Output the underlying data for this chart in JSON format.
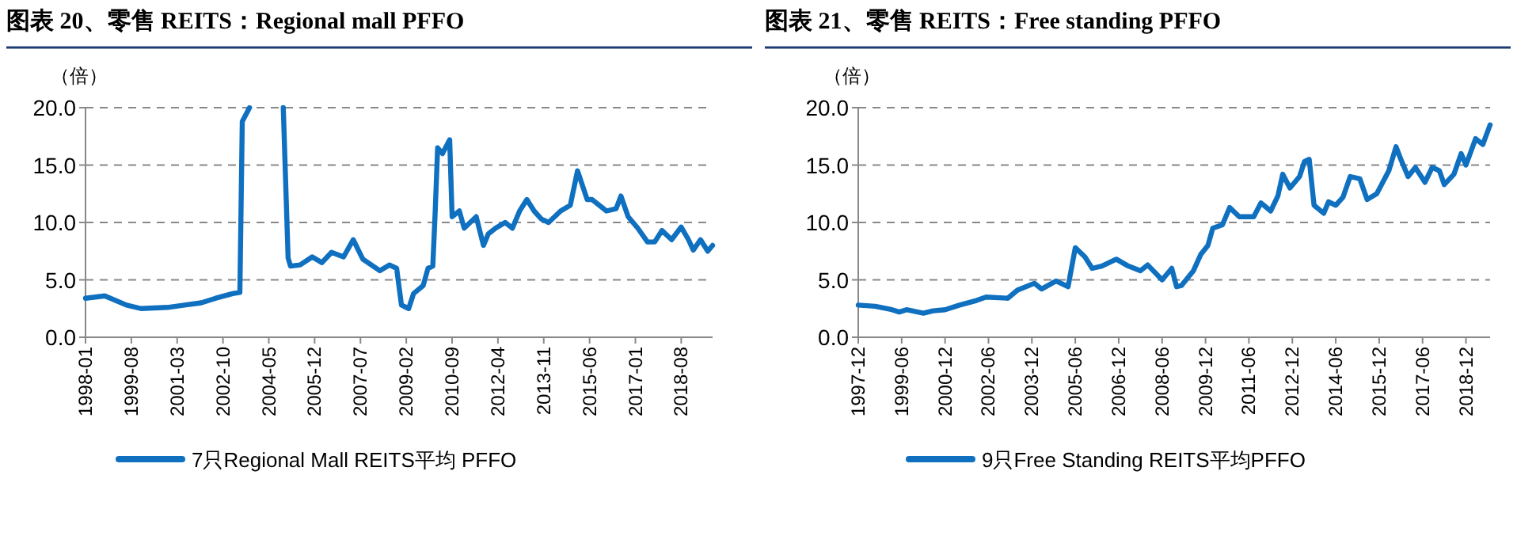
{
  "chart_data": [
    {
      "type": "line",
      "title": "图表 20、零售 REITS：Regional mall PFFO",
      "ylabel": "（倍）",
      "x": [
        "1998-01",
        "1998-09",
        "1999-06",
        "1999-12",
        "2000-11",
        "2001-06",
        "2002-01",
        "2002-07",
        "2003-02",
        "2003-05",
        "2003-06",
        "2003-09",
        "2004-06",
        "2004-11",
        "2005-01",
        "2005-02",
        "2005-06",
        "2005-11",
        "2006-03",
        "2006-07",
        "2006-12",
        "2007-04",
        "2007-08",
        "2008-03",
        "2008-07",
        "2008-10",
        "2008-12",
        "2009-03",
        "2009-05",
        "2009-09",
        "2009-11",
        "2010-01",
        "2010-02",
        "2010-03",
        "2010-05",
        "2010-08",
        "2010-09",
        "2010-12",
        "2011-02",
        "2011-07",
        "2011-10",
        "2011-12",
        "2012-03",
        "2012-07",
        "2012-10",
        "2013-01",
        "2013-04",
        "2013-07",
        "2013-10",
        "2014-01",
        "2014-06",
        "2014-10",
        "2015-01",
        "2015-05",
        "2015-07",
        "2015-10",
        "2016-01",
        "2016-05",
        "2016-07",
        "2016-10",
        "2017-02",
        "2017-06",
        "2017-09",
        "2017-12",
        "2018-04",
        "2018-08",
        "2018-11",
        "2019-01",
        "2019-04",
        "2019-07",
        "2019-09"
      ],
      "series": [
        {
          "name": "7只Regional Mall REITS平均 PFFO",
          "color": "#1070c0",
          "values": [
            3.4,
            3.6,
            2.8,
            2.5,
            2.6,
            2.8,
            3.0,
            3.4,
            3.8,
            3.9,
            18.8,
            20.0,
            null,
            20.0,
            6.9,
            6.2,
            6.3,
            7.0,
            6.5,
            7.4,
            7.0,
            8.5,
            6.8,
            5.8,
            6.3,
            6.0,
            2.8,
            2.5,
            3.8,
            4.5,
            6.0,
            6.2,
            11.0,
            16.5,
            16.0,
            17.2,
            10.5,
            11.0,
            9.5,
            10.5,
            8.0,
            9.0,
            9.5,
            10.0,
            9.5,
            11.0,
            12.0,
            11.0,
            10.3,
            10.0,
            11.0,
            11.5,
            14.5,
            12.0,
            12.0,
            11.5,
            11.0,
            11.2,
            12.3,
            10.5,
            9.5,
            8.3,
            8.3,
            9.3,
            8.5,
            9.6,
            8.5,
            7.6,
            8.5,
            7.5,
            8.0
          ]
        }
      ],
      "xlim": [
        "1998-01",
        "2019-09"
      ],
      "xticks": [
        "1998-01",
        "1999-08",
        "2001-03",
        "2002-10",
        "2004-05",
        "2005-12",
        "2007-07",
        "2009-02",
        "2010-09",
        "2012-04",
        "2013-11",
        "2015-06",
        "2017-01",
        "2018-08"
      ],
      "ylim": [
        0,
        20
      ],
      "yticks": [
        {
          "value": 0,
          "label": "0.0"
        },
        {
          "value": 5,
          "label": "5.0"
        },
        {
          "value": 10,
          "label": "10.0"
        },
        {
          "value": 15,
          "label": "15.0"
        },
        {
          "value": 20,
          "label": "20.0"
        }
      ],
      "grid": "y",
      "legend": "bottom"
    },
    {
      "type": "line",
      "title": "图表 21、零售 REITS：Free standing PFFO",
      "ylabel": "（倍）",
      "x": [
        "1997-12",
        "1998-07",
        "1999-02",
        "1999-05",
        "1999-08",
        "2000-03",
        "2000-07",
        "2000-12",
        "2001-06",
        "2002-01",
        "2002-05",
        "2003-02",
        "2003-06",
        "2004-01",
        "2004-04",
        "2004-10",
        "2005-03",
        "2005-06",
        "2005-10",
        "2006-01",
        "2006-05",
        "2006-11",
        "2007-04",
        "2007-09",
        "2007-12",
        "2008-06",
        "2008-10",
        "2008-12",
        "2009-02",
        "2009-07",
        "2009-10",
        "2010-01",
        "2010-03",
        "2010-07",
        "2010-10",
        "2011-02",
        "2011-08",
        "2011-11",
        "2012-03",
        "2012-06",
        "2012-08",
        "2012-11",
        "2013-03",
        "2013-05",
        "2013-07",
        "2013-09",
        "2014-01",
        "2014-03",
        "2014-06",
        "2014-09",
        "2014-12",
        "2015-04",
        "2015-07",
        "2015-11",
        "2016-04",
        "2016-07",
        "2016-09",
        "2016-12",
        "2017-03",
        "2017-07",
        "2017-10",
        "2018-01",
        "2018-03",
        "2018-07",
        "2018-10",
        "2018-12",
        "2019-04",
        "2019-07",
        "2019-10"
      ],
      "series": [
        {
          "name": "9只Free Standing REITS平均PFFO",
          "color": "#1070c0",
          "values": [
            2.8,
            2.7,
            2.4,
            2.2,
            2.4,
            2.1,
            2.3,
            2.4,
            2.8,
            3.2,
            3.5,
            3.4,
            4.1,
            4.7,
            4.2,
            4.9,
            4.4,
            7.8,
            7.0,
            6.0,
            6.2,
            6.8,
            6.2,
            5.8,
            6.3,
            5.0,
            6.0,
            4.4,
            4.5,
            5.8,
            7.2,
            8.0,
            9.5,
            9.8,
            11.3,
            10.5,
            10.5,
            11.7,
            11.0,
            12.3,
            14.2,
            13.0,
            14.0,
            15.3,
            15.5,
            11.5,
            10.8,
            11.8,
            11.5,
            12.2,
            14.0,
            13.8,
            12.0,
            12.5,
            14.5,
            16.6,
            15.5,
            14.0,
            14.8,
            13.5,
            14.8,
            14.5,
            13.3,
            14.2,
            16.0,
            15.0,
            17.3,
            16.8,
            18.5
          ]
        }
      ],
      "xlim": [
        "1997-12",
        "2019-10"
      ],
      "xticks": [
        "1997-12",
        "1999-06",
        "2000-12",
        "2002-06",
        "2003-12",
        "2005-06",
        "2006-12",
        "2008-06",
        "2009-12",
        "2011-06",
        "2012-12",
        "2014-06",
        "2015-12",
        "2017-06",
        "2018-12"
      ],
      "ylim": [
        0,
        20
      ],
      "yticks": [
        {
          "value": 0,
          "label": "0.0"
        },
        {
          "value": 5,
          "label": "5.0"
        },
        {
          "value": 10,
          "label": "10.0"
        },
        {
          "value": 15,
          "label": "15.0"
        },
        {
          "value": 20,
          "label": "20.0"
        }
      ],
      "grid": "y",
      "legend": "bottom"
    }
  ]
}
